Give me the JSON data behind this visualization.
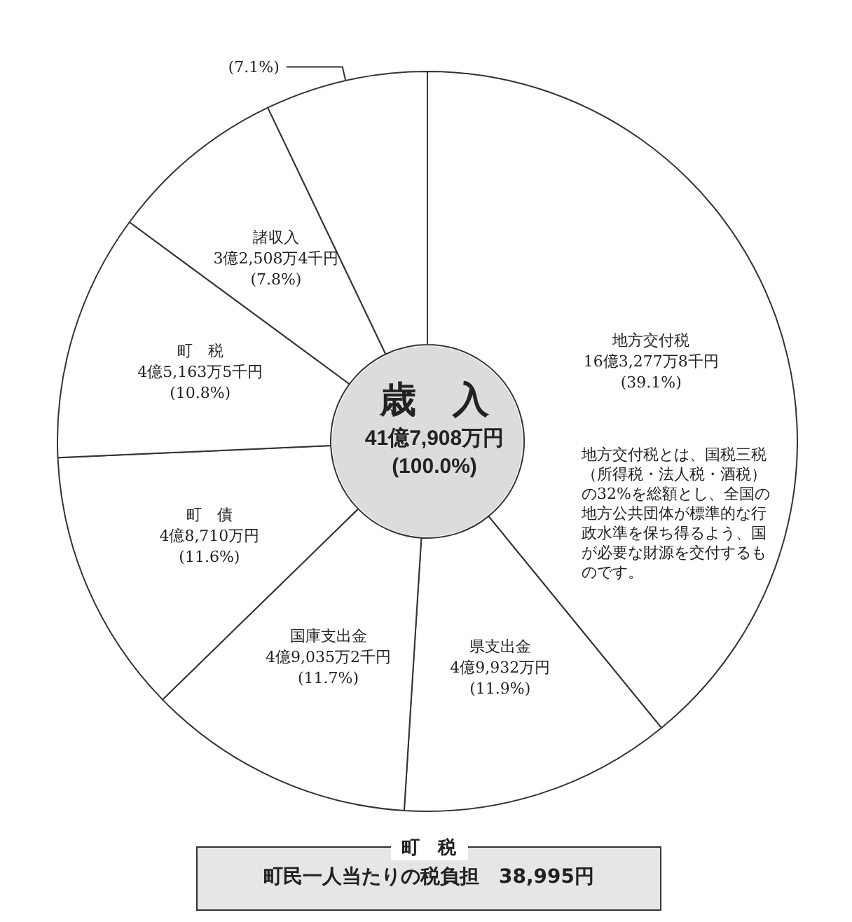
{
  "chart_data": {
    "type": "donut",
    "title": "歳　入",
    "subtitle": "41億7,908万円",
    "categories": [
      "地方交付税",
      "県支出金",
      "国庫支出金",
      "町　債",
      "町　税",
      "諸収入",
      null
    ],
    "values": [
      39.1,
      11.9,
      11.7,
      11.6,
      10.8,
      7.8,
      7.1
    ],
    "value_labels": [
      "16億3,277万8千円\n(39.1%)",
      "4億9,932万円\n(11.9%)",
      "4億9,035万2千円\n(11.7%)",
      "4億8,710万円\n(11.6%)",
      "4億5,163万5千円\n(10.8%)",
      "3億2,508万4千円\n(7.8%)",
      "(7.1%)"
    ],
    "colors": [
      "#ffffff",
      "#ffffff",
      "#ffffff",
      "#ffffff",
      "#ffffff",
      "#ffffff",
      "#ffffff"
    ],
    "annotations": [
      "(100.0%)",
      "地方交付税とは、国税三税（所得税・法人税・酒税）の32%を総額とし、全国の地方公共団体が標準的な行政水準を保ち得るよう、国が必要な財源を交付するものです。",
      "町　税",
      "町民一人当たりの税負担　38,995円"
    ],
    "legend": false
  }
}
